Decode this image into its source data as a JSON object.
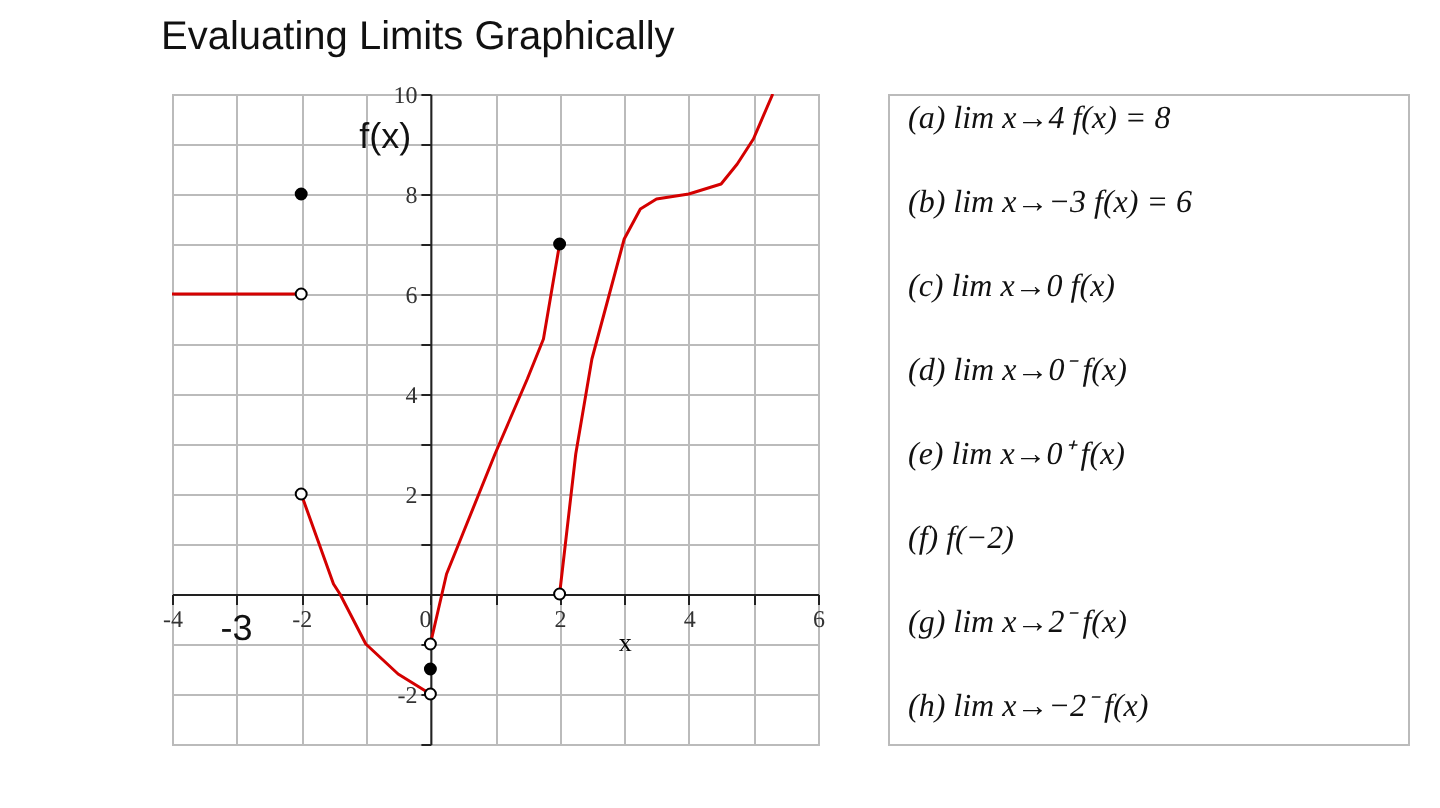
{
  "chart_data": {
    "type": "line",
    "title": "Evaluating Limits Graphically",
    "xlabel": "x",
    "xlim": [
      -4,
      6
    ],
    "ylim": [
      -3,
      10
    ],
    "xticks": [
      -4,
      {
        "value": -3,
        "label": null
      },
      -2,
      {
        "value": -1,
        "label": null
      },
      0,
      {
        "value": 1,
        "label": null
      },
      2,
      {
        "value": 3,
        "label": null
      },
      4,
      {
        "value": 5,
        "label": null
      },
      6
    ],
    "yticks": [
      {
        "value": -3,
        "label": null
      },
      -2,
      {
        "value": -1,
        "label": null
      },
      {
        "value": 0,
        "label": null
      },
      {
        "value": 1,
        "label": null
      },
      2,
      {
        "value": 3,
        "label": null
      },
      4,
      {
        "value": 5,
        "label": null
      },
      6,
      {
        "value": 7,
        "label": null
      },
      8,
      {
        "value": 9,
        "label": null
      },
      10
    ],
    "grid": true,
    "line_style": "solid",
    "series": [
      {
        "marker": "none",
        "color": "#d40000",
        "x": [
          -4,
          -2
        ],
        "values": [
          6,
          6
        ]
      },
      {
        "marker": "none",
        "color": "#d40000",
        "x": [
          -2,
          -1.75,
          -1.5,
          -1.4,
          -1,
          -0.75,
          -0.5,
          -0.25,
          0
        ],
        "values": [
          2,
          1.1,
          0.2,
          0,
          -1.0,
          -1.3,
          -1.6,
          -1.8,
          -2
        ]
      },
      {
        "marker": "none",
        "color": "#d40000",
        "x": [
          0,
          0.25,
          0.5,
          1,
          1.5,
          1.75,
          2
        ],
        "values": [
          -1,
          0.4,
          1.2,
          2.8,
          4.3,
          5.1,
          7
        ]
      },
      {
        "marker": "none",
        "color": "#d40000",
        "x": [
          2,
          2.25,
          2.5,
          2.75,
          3,
          3.25,
          3.5,
          4,
          4.5,
          4.75,
          5,
          5.3
        ],
        "values": [
          0,
          2.8,
          4.7,
          5.9,
          7.1,
          7.7,
          7.9,
          8,
          8.2,
          8.6,
          9.1,
          10
        ]
      },
      {
        "type": "scatter",
        "marker": "circle",
        "color": "#000000",
        "x": [
          -2,
          0,
          2
        ],
        "values": [
          8,
          -1.5,
          7
        ]
      },
      {
        "type": "scatter",
        "marker": "circle",
        "color": "#ffffff",
        "x": [
          -2,
          -2,
          0,
          0,
          2
        ],
        "values": [
          6,
          2,
          -1,
          -2,
          0
        ]
      }
    ],
    "annotations": [
      "f(x)",
      "-3",
      "(a) lim x→4 f(x) = 8",
      "(b) lim x→−3 f(x) = 6",
      "(c) lim x→0 f(x)",
      "(d) lim x→0⁻ f(x)",
      "(e) lim x→0⁺ f(x)",
      "(f) f(−2)",
      "(g) lim x→2⁻ f(x)",
      "(h) lim x→−2⁻ f(x)"
    ]
  }
}
